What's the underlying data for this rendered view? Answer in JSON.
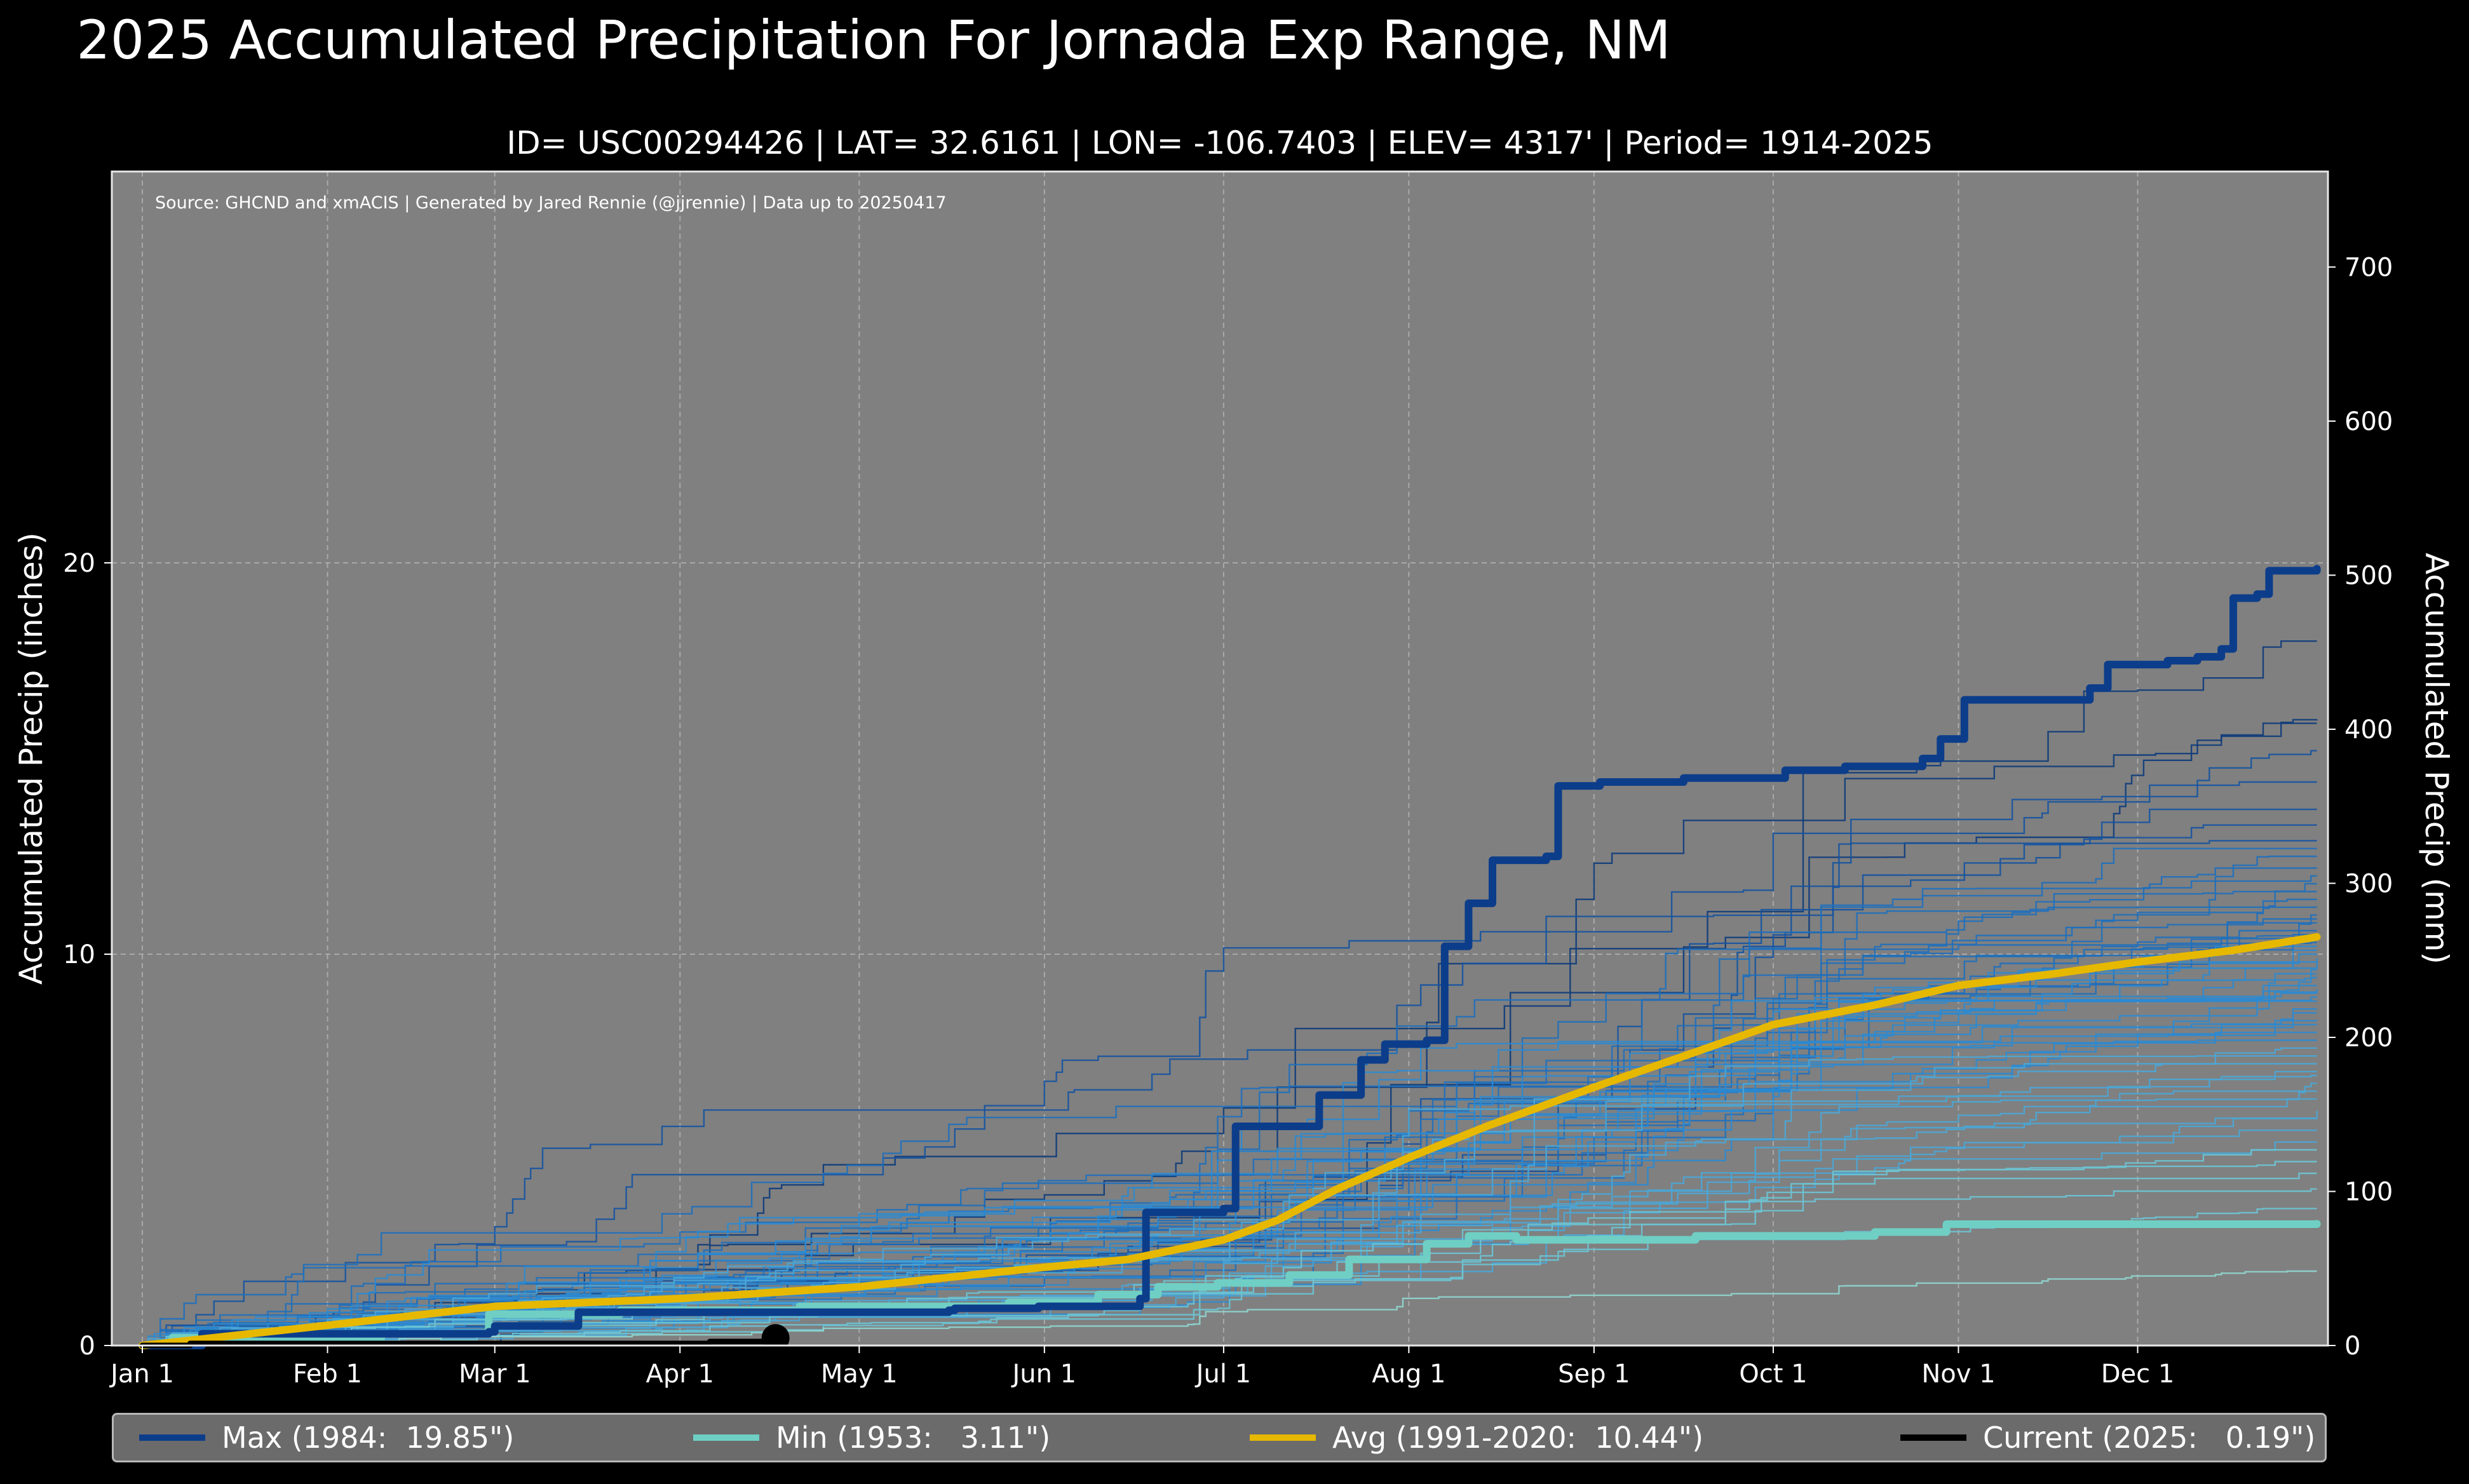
{
  "title": "2025 Accumulated Precipitation For Jornada Exp Range, NM",
  "subtitle": "ID= USC00294426 | LAT= 32.6161 | LON= -106.7403 | ELEV= 4317' | Period= 1914-2025",
  "source_note": "Source: GHCND and xmACIS | Generated by Jared Rennie (@jjrennie) | Data up to 20250417",
  "colors": {
    "background": "#000000",
    "plot_bg": "#808080",
    "max": "#0c3d8a",
    "min": "#6fcfc4",
    "avg": "#e6b800",
    "current": "#000000",
    "historical_palette": [
      "#0d3b7a",
      "#1553a0",
      "#1e6fbd",
      "#2b8ad1",
      "#4aa6d6",
      "#6cc4d4",
      "#8fd6cf"
    ]
  },
  "legend": [
    {
      "key": "max",
      "label": "Max (1984:  19.85\")"
    },
    {
      "key": "min",
      "label": "Min (1953:   3.11\")"
    },
    {
      "key": "avg",
      "label": "Avg (1991-2020:  10.44\")"
    },
    {
      "key": "current",
      "label": "Current (2025:   0.19\")"
    }
  ],
  "chart_data": {
    "type": "line",
    "title": "2025 Accumulated Precipitation For Jornada Exp Range, NM",
    "xlabel": "",
    "ylabel": "Accumulated Precip (inches)",
    "ylabel_right": "Accumulated Precip (mm)",
    "xlim": [
      0,
      365
    ],
    "ylim": [
      0,
      30
    ],
    "ylim_right": [
      0,
      762
    ],
    "x_ticks": [
      {
        "day": 0,
        "label": "Jan 1"
      },
      {
        "day": 31,
        "label": "Feb 1"
      },
      {
        "day": 59,
        "label": "Mar 1"
      },
      {
        "day": 90,
        "label": "Apr 1"
      },
      {
        "day": 120,
        "label": "May 1"
      },
      {
        "day": 151,
        "label": "Jun 1"
      },
      {
        "day": 181,
        "label": "Jul 1"
      },
      {
        "day": 212,
        "label": "Aug 1"
      },
      {
        "day": 243,
        "label": "Sep 1"
      },
      {
        "day": 273,
        "label": "Oct 1"
      },
      {
        "day": 304,
        "label": "Nov 1"
      },
      {
        "day": 334,
        "label": "Dec 1"
      }
    ],
    "y_ticks": [
      0,
      10,
      20
    ],
    "y_ticks_right": [
      0,
      100,
      200,
      300,
      400,
      500,
      600,
      700
    ],
    "grid": true,
    "series": [
      {
        "name": "Max (1984)",
        "key": "max",
        "total": 19.85,
        "points": [
          [
            0,
            0
          ],
          [
            10,
            0.3
          ],
          [
            30,
            0.3
          ],
          [
            58,
            0.35
          ],
          [
            59,
            0.5
          ],
          [
            72,
            0.5
          ],
          [
            73,
            0.85
          ],
          [
            95,
            0.85
          ],
          [
            135,
            0.9
          ],
          [
            136,
            0.95
          ],
          [
            150,
            1.0
          ],
          [
            167,
            1.2
          ],
          [
            168,
            3.4
          ],
          [
            181,
            3.5
          ],
          [
            183,
            5.6
          ],
          [
            196,
            5.6
          ],
          [
            197,
            6.4
          ],
          [
            201,
            6.4
          ],
          [
            204,
            7.3
          ],
          [
            208,
            7.7
          ],
          [
            215,
            7.8
          ],
          [
            218,
            10.2
          ],
          [
            222,
            11.3
          ],
          [
            226,
            12.4
          ],
          [
            235,
            12.5
          ],
          [
            237,
            14.3
          ],
          [
            242,
            14.3
          ],
          [
            244,
            14.4
          ],
          [
            251,
            14.4
          ],
          [
            258,
            14.5
          ],
          [
            271,
            14.5
          ],
          [
            275,
            14.7
          ],
          [
            285,
            14.8
          ],
          [
            292,
            14.8
          ],
          [
            298,
            15.0
          ],
          [
            301,
            15.5
          ],
          [
            305,
            16.5
          ],
          [
            320,
            16.5
          ],
          [
            326,
            16.8
          ],
          [
            329,
            17.4
          ],
          [
            339,
            17.5
          ],
          [
            344,
            17.6
          ],
          [
            348,
            17.8
          ],
          [
            350,
            19.1
          ],
          [
            354,
            19.2
          ],
          [
            356,
            19.8
          ],
          [
            364,
            19.85
          ]
        ]
      },
      {
        "name": "Min (1953)",
        "key": "min",
        "total": 3.11,
        "points": [
          [
            0,
            0
          ],
          [
            5,
            0.2
          ],
          [
            30,
            0.2
          ],
          [
            40,
            0.3
          ],
          [
            55,
            0.3
          ],
          [
            58,
            0.8
          ],
          [
            80,
            0.9
          ],
          [
            110,
            1.0
          ],
          [
            145,
            1.1
          ],
          [
            160,
            1.3
          ],
          [
            170,
            1.5
          ],
          [
            180,
            1.6
          ],
          [
            192,
            1.8
          ],
          [
            202,
            2.2
          ],
          [
            215,
            2.6
          ],
          [
            222,
            2.8
          ],
          [
            230,
            2.7
          ],
          [
            260,
            2.8
          ],
          [
            290,
            2.9
          ],
          [
            300,
            2.9
          ],
          [
            302,
            3.1
          ],
          [
            364,
            3.11
          ]
        ]
      },
      {
        "name": "Avg (1991-2020)",
        "key": "avg",
        "total": 10.44,
        "points": [
          [
            0,
            0
          ],
          [
            30,
            0.5
          ],
          [
            59,
            1.0
          ],
          [
            90,
            1.2
          ],
          [
            120,
            1.5
          ],
          [
            151,
            2.0
          ],
          [
            165,
            2.2
          ],
          [
            181,
            2.7
          ],
          [
            190,
            3.2
          ],
          [
            200,
            4.0
          ],
          [
            212,
            4.8
          ],
          [
            225,
            5.6
          ],
          [
            243,
            6.6
          ],
          [
            260,
            7.5
          ],
          [
            273,
            8.2
          ],
          [
            290,
            8.7
          ],
          [
            304,
            9.2
          ],
          [
            320,
            9.5
          ],
          [
            334,
            9.8
          ],
          [
            350,
            10.1
          ],
          [
            364,
            10.44
          ]
        ]
      },
      {
        "name": "Current (2025)",
        "key": "current",
        "total": 0.19,
        "points": [
          [
            0,
            0
          ],
          [
            8,
            0.05
          ],
          [
            50,
            0.05
          ],
          [
            95,
            0.1
          ],
          [
            105,
            0.18
          ],
          [
            106,
            0.19
          ]
        ]
      }
    ],
    "historical_totals": [
      18.0,
      16.0,
      15.9,
      15.2,
      14.4,
      13.7,
      13.3,
      12.9,
      12.7,
      12.5,
      12.2,
      12.0,
      11.8,
      11.6,
      11.4,
      11.2,
      11.0,
      10.9,
      10.8,
      10.6,
      10.5,
      10.4,
      10.3,
      10.2,
      10.1,
      10.0,
      9.9,
      9.8,
      9.6,
      9.5,
      9.4,
      9.2,
      9.1,
      9.0,
      8.9,
      8.8,
      8.6,
      8.5,
      8.3,
      8.2,
      8.0,
      7.8,
      7.6,
      7.4,
      7.2,
      7.0,
      6.9,
      6.7,
      6.5,
      6.3,
      6.0,
      5.8,
      5.5,
      5.2,
      5.0,
      4.7,
      4.4,
      4.0,
      3.5,
      1.9
    ]
  }
}
